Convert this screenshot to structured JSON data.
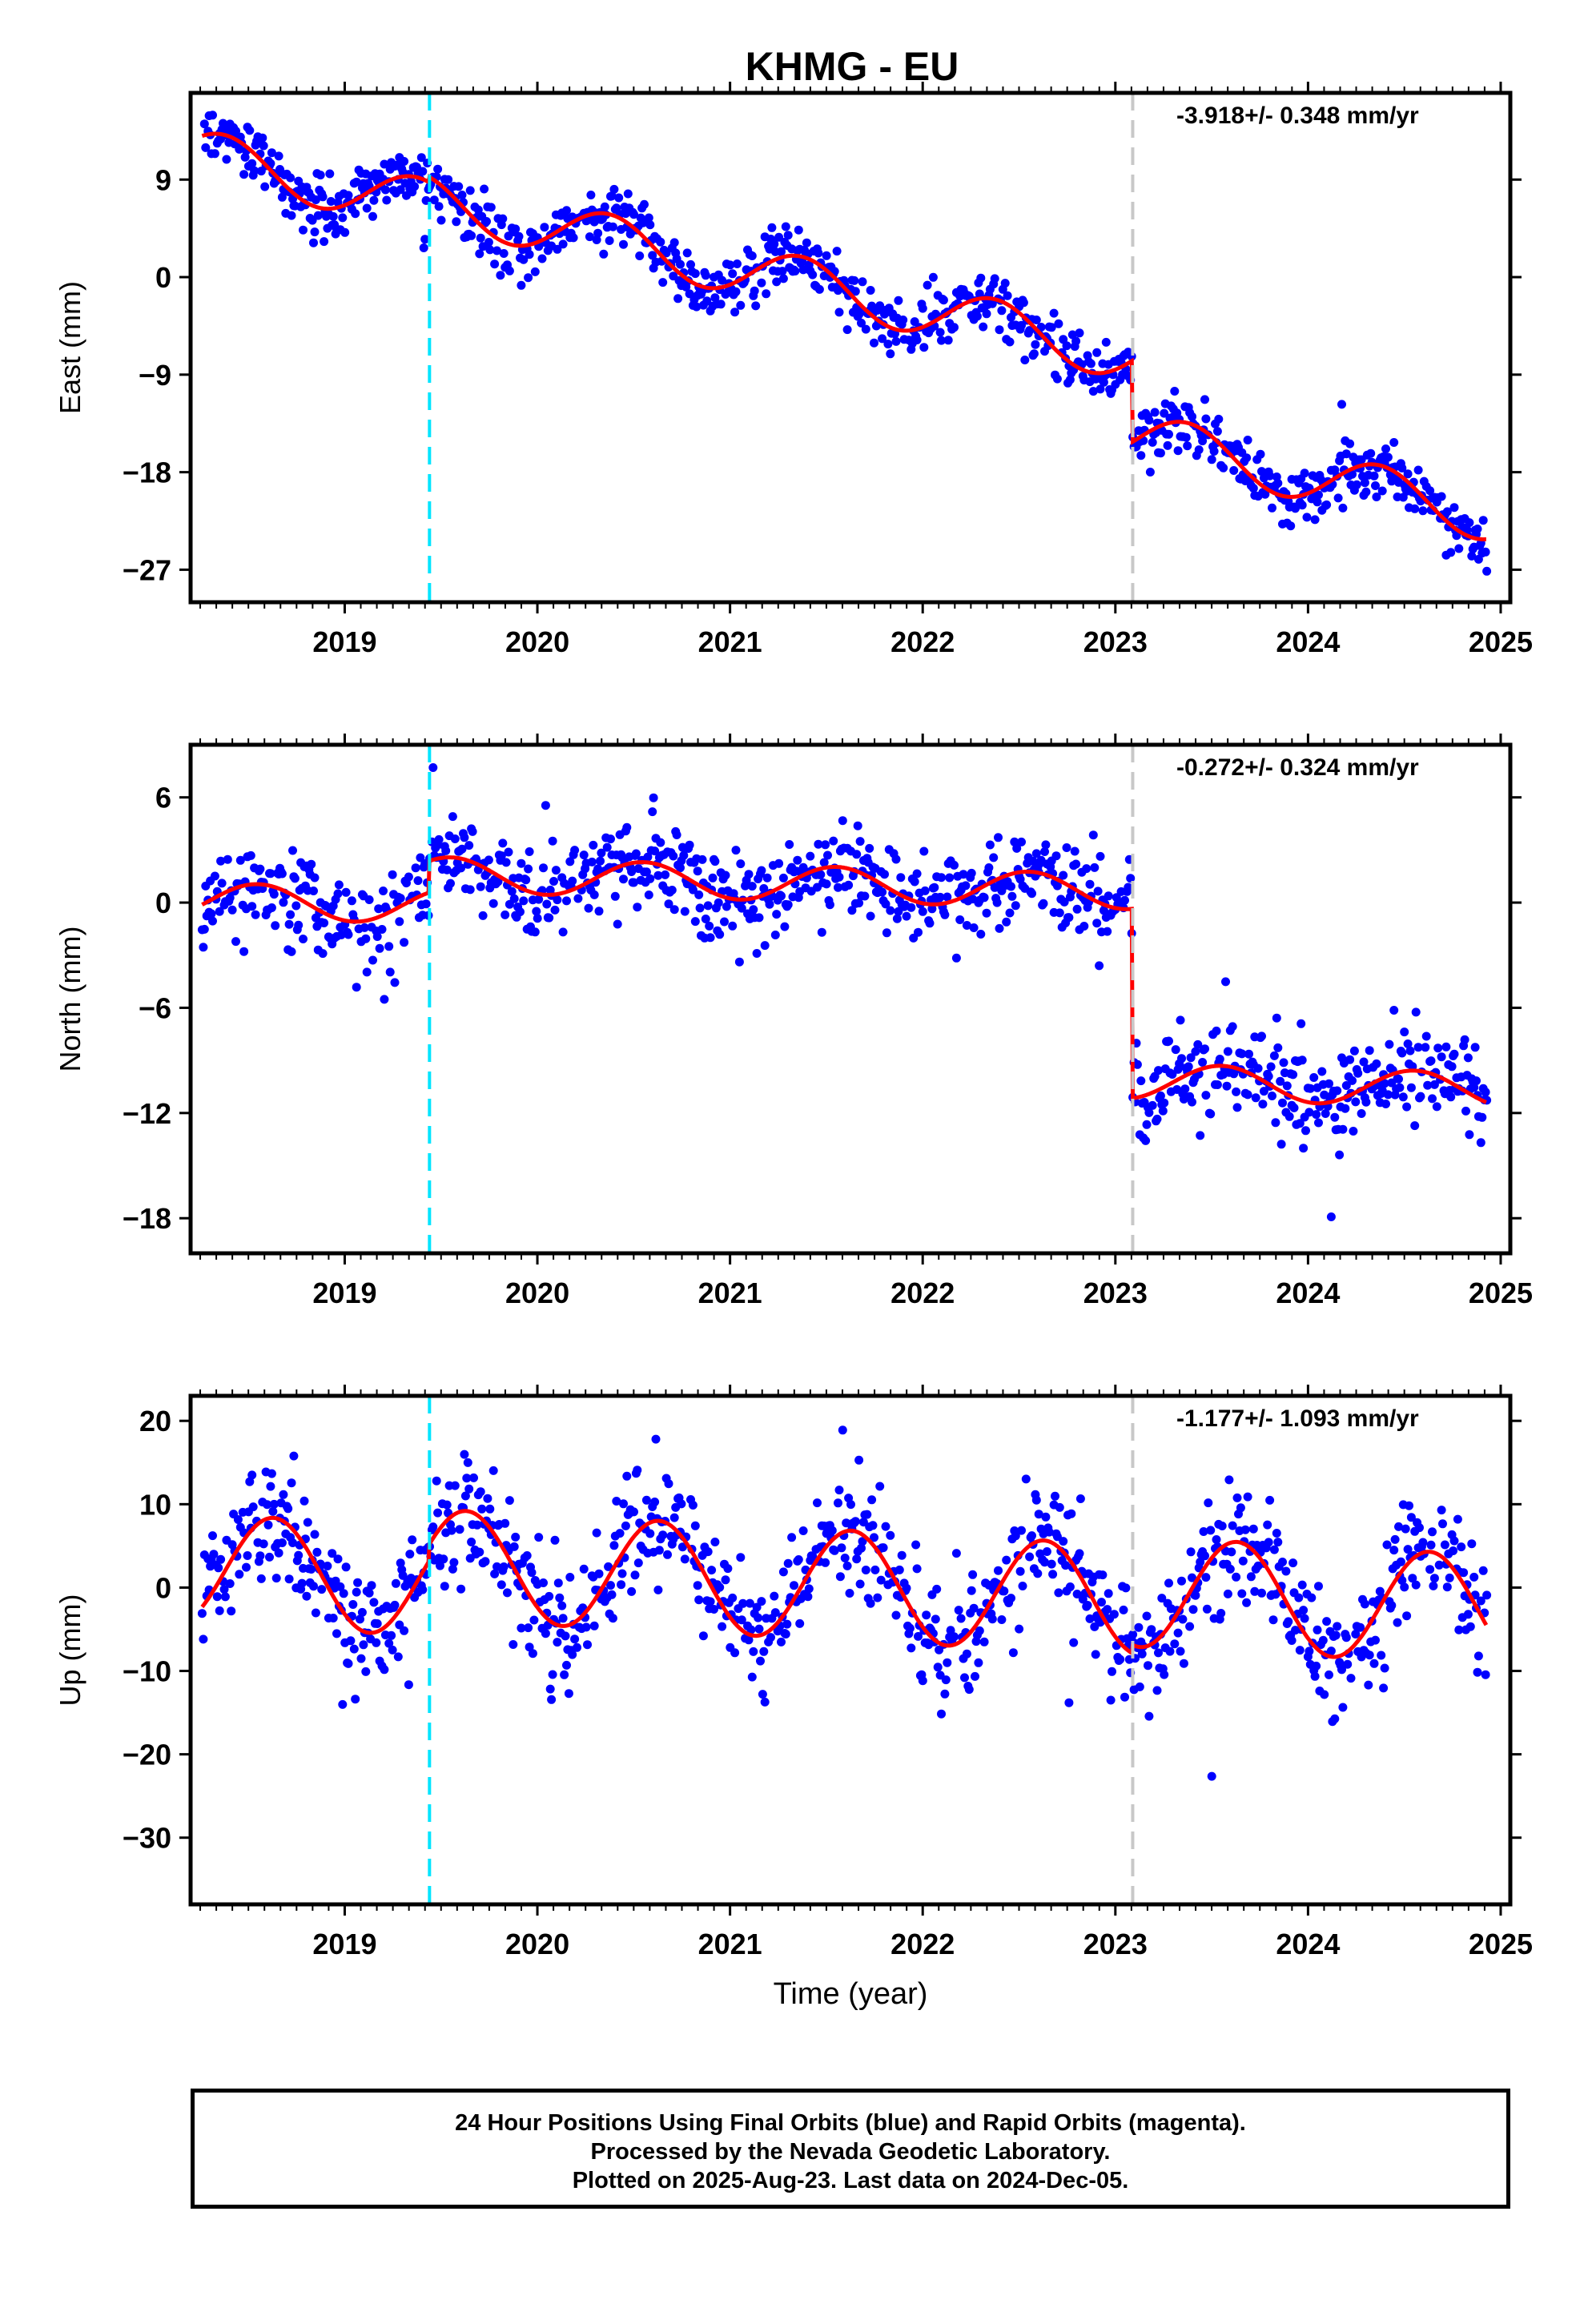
{
  "figure": {
    "title": "KHMG - EU",
    "xlabel": "Time (year)",
    "footer": [
      "24 Hour Positions Using Final Orbits (blue) and Rapid Orbits (magenta).",
      "Processed by the Nevada Geodetic Laboratory.",
      "Plotted on 2025-Aug-23. Last data on 2024-Dec-05."
    ],
    "colors": {
      "points": "#0000ff",
      "model": "#ff0000",
      "cyan_marker": "#00e5ff",
      "gray_marker": "#c8c8c8"
    }
  },
  "chart_data": [
    {
      "type": "scatter",
      "ylabel": "East (mm)",
      "rate_text": "-3.918+/- 0.348 mm/yr",
      "xlim": [
        2018.2,
        2025.05
      ],
      "ylim": [
        -30,
        17
      ],
      "yticks": [
        9,
        0,
        -9,
        -18,
        -27
      ],
      "ytick_labels": [
        "9",
        "0",
        "−9",
        "−18",
        "−27"
      ],
      "xticks": [
        2019,
        2020,
        2021,
        2022,
        2023,
        2024,
        2025
      ],
      "xtick_labels": [
        "2019",
        "2020",
        "2021",
        "2022",
        "2023",
        "2024",
        "2025"
      ],
      "markers": [
        2019.44,
        2023.09
      ],
      "model": {
        "trend_per_year": -3.918,
        "intercept_at_2018": 12.2,
        "annual_amplitude": 2.4,
        "annual_peak": 0.37,
        "offsets": [
          {
            "at": 2019.44,
            "step": 0.5
          },
          {
            "at": 2023.09,
            "step": -7.5
          }
        ],
        "start": 2018.26,
        "end": 2024.93
      },
      "scatter_sd": 1.3
    },
    {
      "type": "scatter",
      "ylabel": "North (mm)",
      "rate_text": "-0.272+/- 0.324 mm/yr",
      "xlim": [
        2018.2,
        2025.05
      ],
      "ylim": [
        -20,
        9
      ],
      "yticks": [
        6,
        0,
        -6,
        -12,
        -18
      ],
      "ytick_labels": [
        "6",
        "0",
        "−6",
        "−12",
        "−18"
      ],
      "xticks": [
        2019,
        2020,
        2021,
        2022,
        2023,
        2024,
        2025
      ],
      "xtick_labels": [
        "2019",
        "2020",
        "2021",
        "2022",
        "2023",
        "2024",
        "2025"
      ],
      "markers": [
        2019.44,
        2023.09
      ],
      "model": {
        "trend_per_year": -0.272,
        "intercept_at_2018": 0.2,
        "annual_amplitude": 1.0,
        "annual_peak": 0.55,
        "offsets": [
          {
            "at": 2019.44,
            "step": 1.8
          },
          {
            "at": 2023.09,
            "step": -10.8
          }
        ],
        "start": 2018.26,
        "end": 2024.93
      },
      "scatter_sd": 1.3
    },
    {
      "type": "scatter",
      "ylabel": "Up (mm)",
      "rate_text": "-1.177+/- 1.093 mm/yr",
      "xlim": [
        2018.2,
        2025.05
      ],
      "ylim": [
        -38,
        23
      ],
      "yticks": [
        20,
        10,
        0,
        -10,
        -20,
        -30
      ],
      "ytick_labels": [
        "20",
        "10",
        "0",
        "−10",
        "−20",
        "−30"
      ],
      "xticks": [
        2019,
        2020,
        2021,
        2022,
        2023,
        2024,
        2025
      ],
      "xtick_labels": [
        "2019",
        "2020",
        "2021",
        "2022",
        "2023",
        "2024",
        "2025"
      ],
      "markers": [
        2019.44,
        2023.09
      ],
      "model": {
        "trend_per_year": -1.177,
        "intercept_at_2018": 2.5,
        "annual_amplitude": 6.6,
        "annual_peak": 0.63,
        "offsets": [
          {
            "at": 2019.44,
            "step": 2.0
          },
          {
            "at": 2023.09,
            "step": 1.0
          }
        ],
        "start": 2018.26,
        "end": 2024.93
      },
      "scatter_sd": 3.6
    }
  ]
}
